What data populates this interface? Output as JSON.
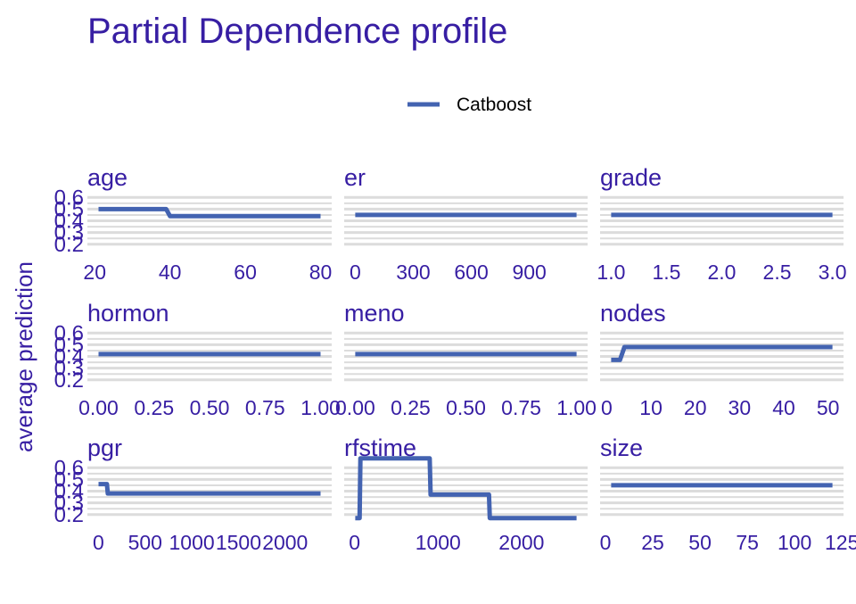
{
  "title": "Partial Dependence profile",
  "ylabel": "average prediction",
  "colors": {
    "text": "#371ea3",
    "series": "#4363b1",
    "grid": "#dcdcdc"
  },
  "legend": {
    "placement": "top",
    "items": [
      {
        "name": "Catboost",
        "color": "#4363b1"
      }
    ]
  },
  "chart_data": [
    {
      "type": "line",
      "title": "age",
      "xlim": [
        21,
        80
      ],
      "ylim": [
        0.2,
        0.6
      ],
      "xticks": [
        "20",
        "40",
        "60",
        "80"
      ],
      "xtick_values": [
        20,
        40,
        60,
        80
      ],
      "yticks": [
        "0.2",
        "0.3",
        "0.4",
        "0.5",
        "0.6"
      ],
      "series": [
        {
          "name": "Catboost",
          "x": [
            21,
            39,
            40,
            80
          ],
          "y": [
            0.5,
            0.5,
            0.44,
            0.44
          ]
        }
      ]
    },
    {
      "type": "line",
      "title": "er",
      "xlim": [
        0,
        1144
      ],
      "ylim": [
        0.2,
        0.6
      ],
      "xticks": [
        "0",
        "300",
        "600",
        "900"
      ],
      "xtick_values": [
        0,
        300,
        600,
        900
      ],
      "yticks": [
        "0.2",
        "0.3",
        "0.4",
        "0.5",
        "0.6"
      ],
      "series": [
        {
          "name": "Catboost",
          "x": [
            0,
            1144
          ],
          "y": [
            0.45,
            0.45
          ]
        }
      ]
    },
    {
      "type": "line",
      "title": "grade",
      "xlim": [
        1,
        3
      ],
      "ylim": [
        0.2,
        0.6
      ],
      "xticks": [
        "1.0",
        "1.5",
        "2.0",
        "2.5",
        "3.0"
      ],
      "xtick_values": [
        1.0,
        1.5,
        2.0,
        2.5,
        3.0
      ],
      "yticks": [
        "0.2",
        "0.3",
        "0.4",
        "0.5",
        "0.6"
      ],
      "series": [
        {
          "name": "Catboost",
          "x": [
            1,
            3
          ],
          "y": [
            0.45,
            0.45
          ]
        }
      ]
    },
    {
      "type": "line",
      "title": "hormon",
      "xlim": [
        0,
        1
      ],
      "ylim": [
        0.2,
        0.6
      ],
      "xticks": [
        "0.00",
        "0.25",
        "0.50",
        "0.75",
        "1.00"
      ],
      "xtick_values": [
        0,
        0.25,
        0.5,
        0.75,
        1.0
      ],
      "yticks": [
        "0.2",
        "0.3",
        "0.4",
        "0.5",
        "0.6"
      ],
      "series": [
        {
          "name": "Catboost",
          "x": [
            0,
            1
          ],
          "y": [
            0.42,
            0.42
          ]
        }
      ]
    },
    {
      "type": "line",
      "title": "meno",
      "xlim": [
        0,
        1
      ],
      "ylim": [
        0.2,
        0.6
      ],
      "xticks": [
        "0.00",
        "0.25",
        "0.50",
        "0.75",
        "1.00"
      ],
      "xtick_values": [
        0,
        0.25,
        0.5,
        0.75,
        1.0
      ],
      "yticks": [
        "0.2",
        "0.3",
        "0.4",
        "0.5",
        "0.6"
      ],
      "series": [
        {
          "name": "Catboost",
          "x": [
            0,
            1
          ],
          "y": [
            0.42,
            0.42
          ]
        }
      ]
    },
    {
      "type": "line",
      "title": "nodes",
      "xlim": [
        1,
        51
      ],
      "ylim": [
        0.2,
        0.6
      ],
      "xticks": [
        "0",
        "10",
        "20",
        "30",
        "40",
        "50"
      ],
      "xtick_values": [
        0,
        10,
        20,
        30,
        40,
        50
      ],
      "yticks": [
        "0.2",
        "0.3",
        "0.4",
        "0.5",
        "0.6"
      ],
      "series": [
        {
          "name": "Catboost",
          "x": [
            1,
            3,
            4,
            51
          ],
          "y": [
            0.37,
            0.37,
            0.48,
            0.48
          ]
        }
      ]
    },
    {
      "type": "line",
      "title": "pgr",
      "xlim": [
        0,
        2380
      ],
      "ylim": [
        0.2,
        0.6
      ],
      "xticks": [
        "0",
        "500",
        "1000",
        "1500",
        "2000"
      ],
      "xtick_values": [
        0,
        500,
        1000,
        1500,
        2000
      ],
      "yticks": [
        "0.2",
        "0.3",
        "0.4",
        "0.5",
        "0.6"
      ],
      "series": [
        {
          "name": "Catboost",
          "x": [
            0,
            90,
            100,
            2380
          ],
          "y": [
            0.46,
            0.46,
            0.38,
            0.38
          ]
        }
      ]
    },
    {
      "type": "line",
      "title": "rfstime",
      "xlim": [
        8,
        2659
      ],
      "ylim": [
        0.2,
        0.6
      ],
      "xticks": [
        "0",
        "1000",
        "2000"
      ],
      "xtick_values": [
        0,
        1000,
        2000
      ],
      "yticks": [
        "0.2",
        "0.3",
        "0.4",
        "0.5",
        "0.6"
      ],
      "series": [
        {
          "name": "Catboost",
          "x": [
            8,
            60,
            70,
            900,
            910,
            1610,
            1620,
            2659
          ],
          "y": [
            0.17,
            0.17,
            0.68,
            0.68,
            0.37,
            0.37,
            0.17,
            0.17
          ]
        }
      ]
    },
    {
      "type": "line",
      "title": "size",
      "xlim": [
        3,
        120
      ],
      "ylim": [
        0.2,
        0.6
      ],
      "xticks": [
        "0",
        "25",
        "50",
        "75",
        "100",
        "125"
      ],
      "xtick_values": [
        0,
        25,
        50,
        75,
        100,
        125
      ],
      "yticks": [
        "0.2",
        "0.3",
        "0.4",
        "0.5",
        "0.6"
      ],
      "series": [
        {
          "name": "Catboost",
          "x": [
            3,
            120
          ],
          "y": [
            0.45,
            0.45
          ]
        }
      ]
    }
  ]
}
